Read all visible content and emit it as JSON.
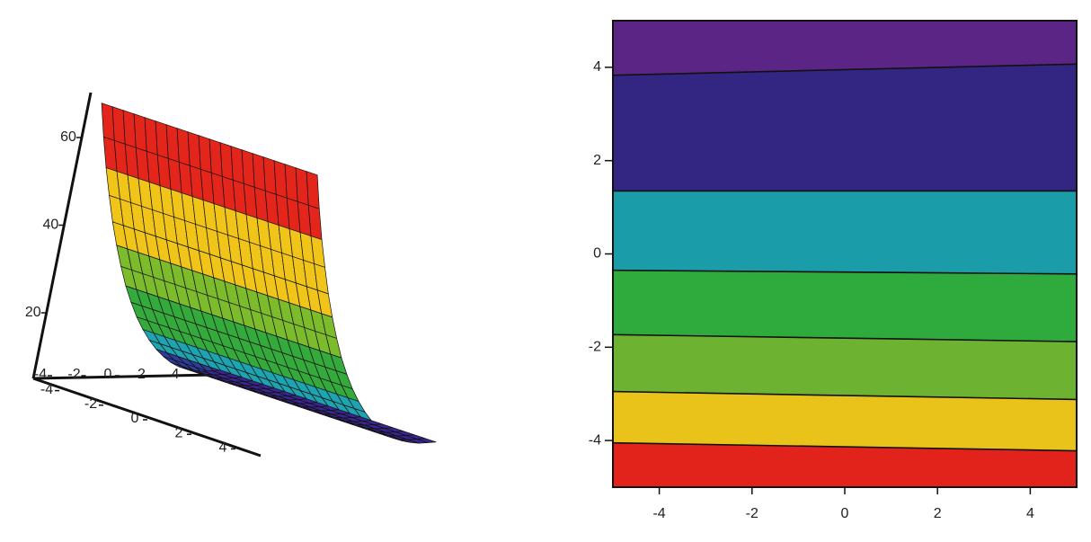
{
  "chart_data": [
    {
      "type": "surface",
      "x": [
        -5,
        -4.5,
        -4,
        -3.5,
        -3,
        -2.5,
        -2,
        -1.5,
        -1,
        -0.5,
        0,
        0.5,
        1,
        1.5,
        2,
        2.5,
        3,
        3.5,
        4,
        4.5,
        5
      ],
      "y": [
        -5,
        -4.5,
        -4,
        -3.5,
        -3,
        -2.5,
        -2,
        -1.5,
        -1,
        -0.5,
        0,
        0.5,
        1,
        1.5,
        2,
        2.5,
        3,
        3.5,
        4,
        4.5,
        5
      ],
      "values": [
        68,
        60,
        52.7,
        46.1,
        39.8,
        34.2,
        29.1,
        24.4,
        20.4,
        16.8,
        13.7,
        11,
        8.7,
        6.8,
        5.2,
        4,
        3.2,
        2.6,
        2.2,
        2.1,
        2
      ],
      "xticks": [
        -4,
        -2,
        0,
        2,
        4
      ],
      "yticks": [
        -4,
        -2,
        0,
        2,
        4
      ],
      "zticks": [
        20,
        40,
        60
      ],
      "color_levels": [
        4,
        9,
        15,
        24,
        36,
        52
      ],
      "colors": [
        "#3a2590",
        "#2f3c99",
        "#1ea3b0",
        "#35aa3c",
        "#7bbb2c",
        "#f0c418",
        "#e4251b"
      ]
    },
    {
      "type": "contour",
      "x": [
        -5,
        5
      ],
      "series": [
        {
          "values": [
            3.83,
            4.07
          ]
        },
        {
          "values": [
            1.35,
            1.35
          ]
        },
        {
          "values": [
            -0.35,
            -0.43
          ]
        },
        {
          "values": [
            -1.73,
            -1.88
          ]
        },
        {
          "values": [
            -2.95,
            -3.12
          ]
        },
        {
          "values": [
            -4.05,
            -4.22
          ]
        }
      ],
      "colors": [
        "#5a2585",
        "#332582",
        "#1a9ca9",
        "#2faa3d",
        "#6db331",
        "#e9c21a",
        "#e1231b"
      ],
      "xlim": [
        -5,
        5
      ],
      "ylim": [
        -5,
        5
      ],
      "xticks": [
        -4,
        -2,
        0,
        2,
        4
      ],
      "yticks": [
        -4,
        -2,
        0,
        2,
        4
      ]
    }
  ]
}
